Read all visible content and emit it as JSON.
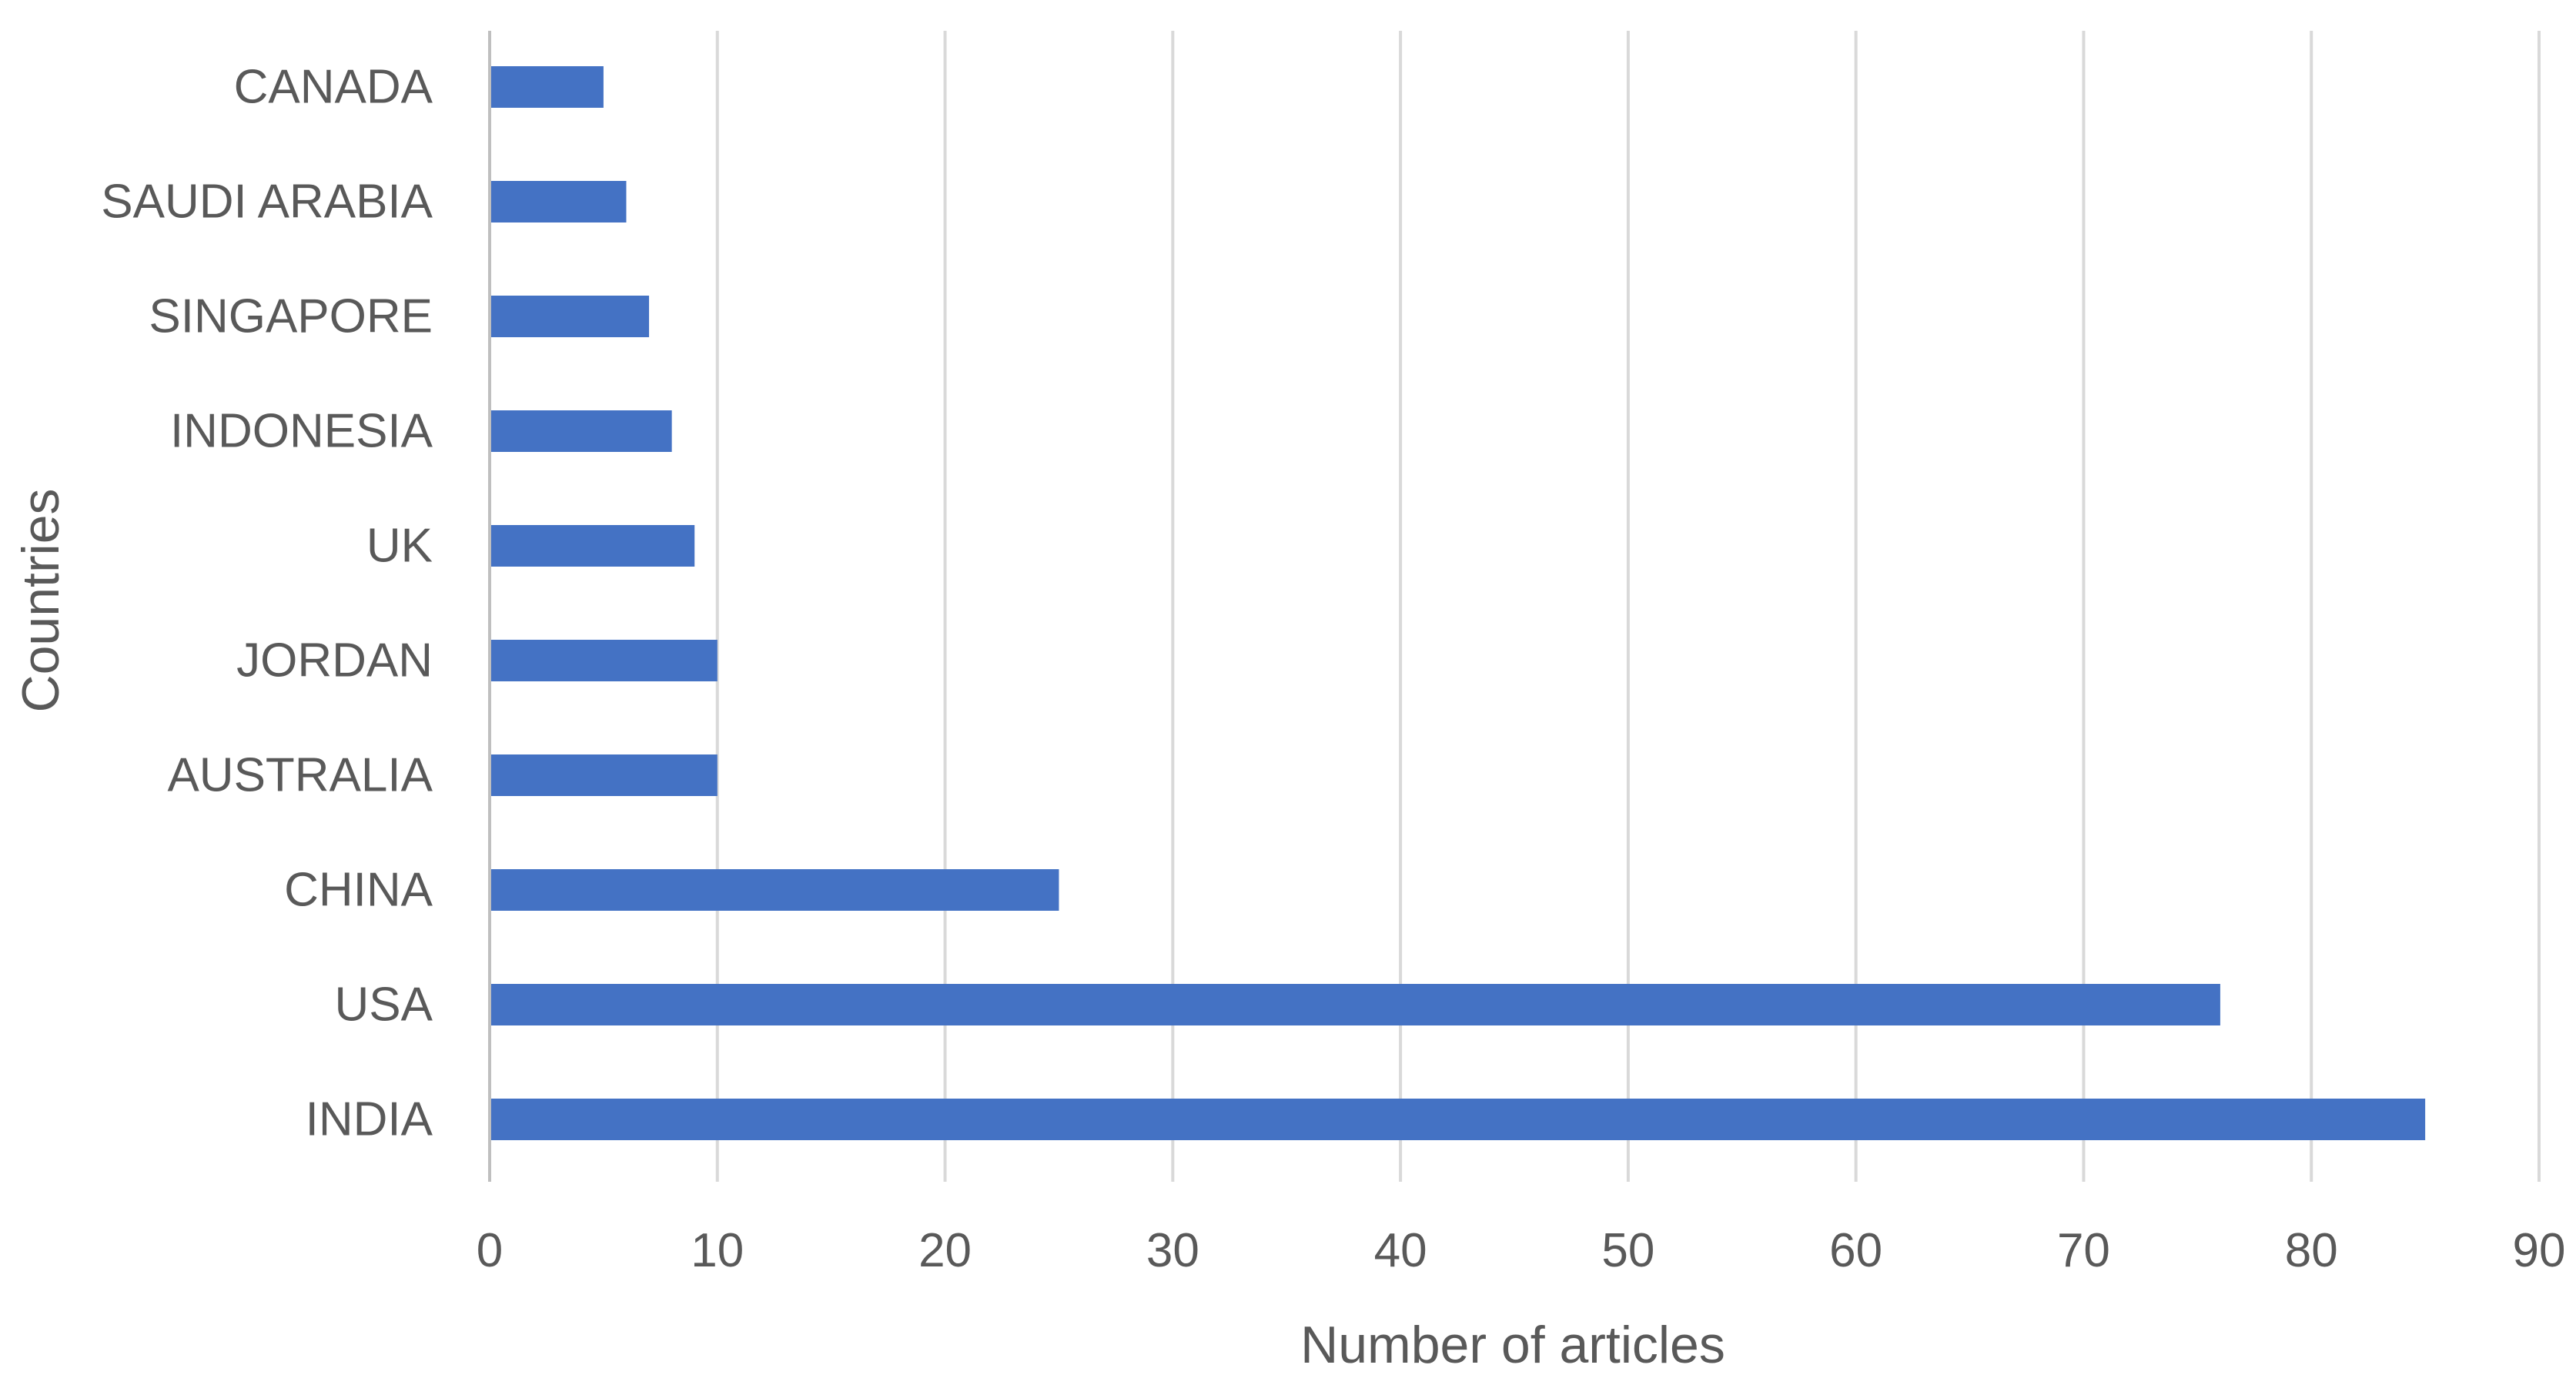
{
  "chart_data": {
    "type": "bar",
    "orientation": "horizontal",
    "categories": [
      "INDIA",
      "USA",
      "CHINA",
      "AUSTRALIA",
      "JORDAN",
      "UK",
      "INDONESIA",
      "SINGAPORE",
      "SAUDI ARABIA",
      "CANADA"
    ],
    "values": [
      85,
      76,
      25,
      10,
      10,
      9,
      8,
      7,
      6,
      5
    ],
    "xlabel": "Number of articles",
    "ylabel": "Countries",
    "xlim": [
      0,
      90
    ],
    "x_ticks": [
      "0",
      "10",
      "20",
      "30",
      "40",
      "50",
      "60",
      "70",
      "80",
      "90"
    ],
    "grid": "vertical",
    "legend": "none",
    "colors": {
      "bar": "#4472C4",
      "grid": "#D9D9D9",
      "axis": "#BFBFBF",
      "text": "#595959"
    }
  }
}
